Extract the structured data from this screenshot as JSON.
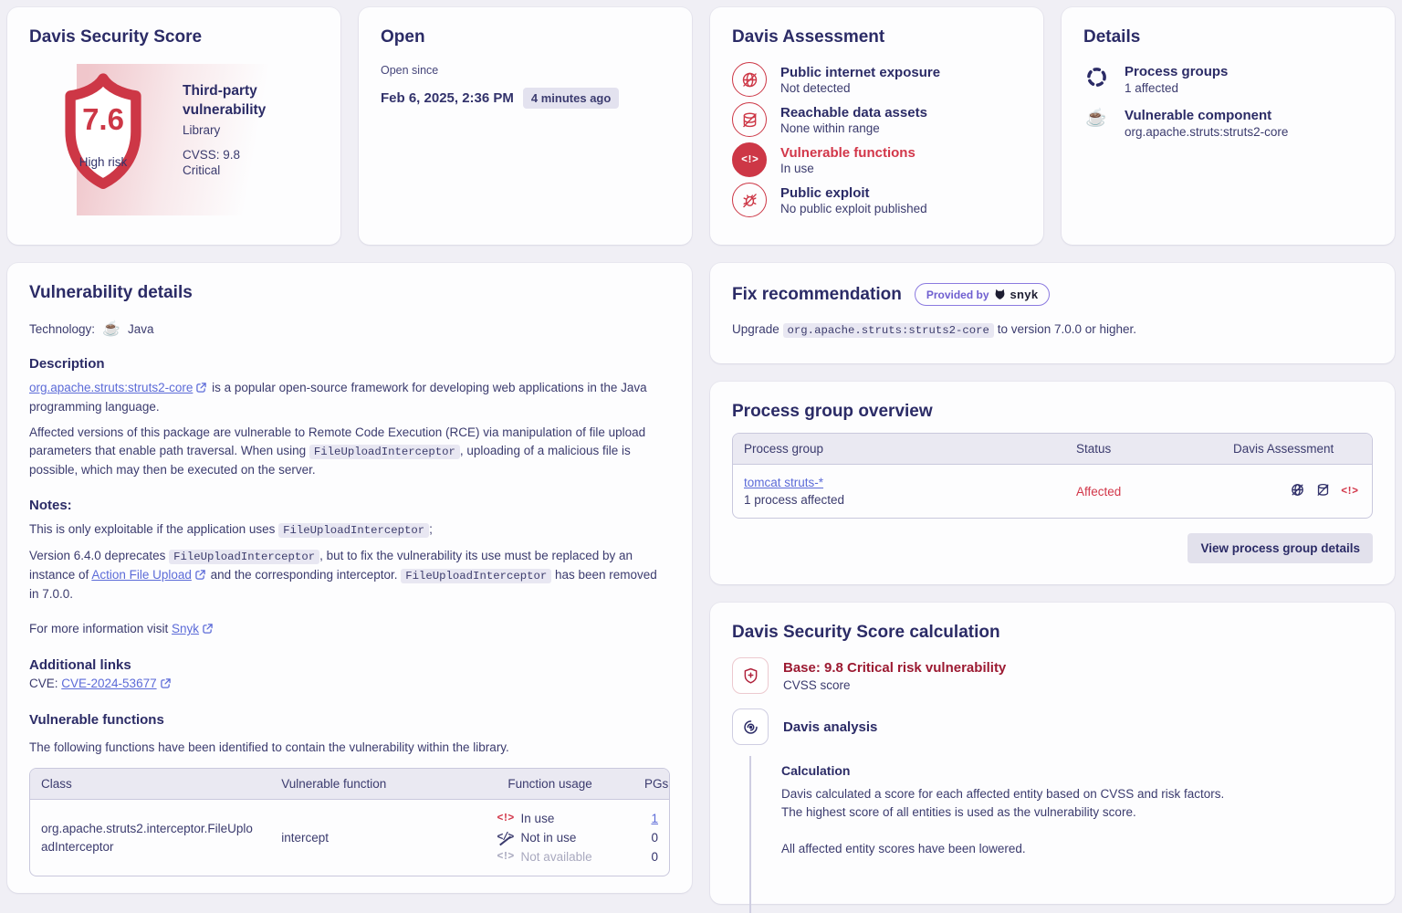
{
  "colors": {
    "accent_red": "#cd3746",
    "bright_red": "#d23649",
    "dark_red": "#9c1a32",
    "navy": "#2b2b66",
    "link": "#5c6bd8",
    "page_bg": "#f0eff5"
  },
  "icons": {
    "code_alert_glyph": "<!>",
    "code_slash_glyph": "</>",
    "java_glyph": "☕"
  },
  "score_card": {
    "title": "Davis Security Score",
    "score": "7.6",
    "risk_label": "High risk",
    "type": "Third-party vulnerability",
    "category": "Library",
    "cvss": "CVSS: 9.8",
    "severity": "Critical"
  },
  "status_card": {
    "title": "Open",
    "since_label": "Open since",
    "timestamp": "Feb 6, 2025, 2:36 PM",
    "ago_badge": "4 minutes ago"
  },
  "assessment_card": {
    "title": "Davis Assessment",
    "items": [
      {
        "label": "Public internet exposure",
        "value": "Not detected",
        "icon": "globe-slash-icon"
      },
      {
        "label": "Reachable data assets",
        "value": "None within range",
        "icon": "database-slash-icon"
      },
      {
        "label": "Vulnerable functions",
        "value": "In use",
        "icon": "code-alert-icon"
      },
      {
        "label": "Public exploit",
        "value": "No public exploit published",
        "icon": "bug-slash-icon"
      }
    ]
  },
  "details_card": {
    "title": "Details",
    "items": [
      {
        "label": "Process groups",
        "value": "1 affected",
        "icon": "process-groups-icon"
      },
      {
        "label": "Vulnerable component",
        "value": "org.apache.struts:struts2-core",
        "icon": "java-icon"
      }
    ]
  },
  "vuln_details": {
    "title": "Vulnerability details",
    "technology_label": "Technology:",
    "technology_value": "Java",
    "description_heading": "Description",
    "p1": [
      {
        "t": "extlink",
        "v": "org.apache.struts:struts2-core"
      },
      {
        "t": "text",
        "v": " is a popular open-source framework for developing web applications in the Java programming language."
      }
    ],
    "p2": [
      {
        "t": "text",
        "v": "Affected versions of this package are vulnerable to Remote Code Execution (RCE) via manipulation of file upload parameters that enable path traversal. When using "
      },
      {
        "t": "code",
        "v": "FileUploadInterceptor"
      },
      {
        "t": "text",
        "v": ", uploading of a malicious file is possible, which may then be executed on the server."
      }
    ],
    "notes_heading": "Notes:",
    "n1": [
      {
        "t": "text",
        "v": "This is only exploitable if the application uses "
      },
      {
        "t": "code",
        "v": "FileUploadInterceptor"
      },
      {
        "t": "text",
        "v": ";"
      }
    ],
    "n2": [
      {
        "t": "text",
        "v": "Version 6.4.0 deprecates "
      },
      {
        "t": "code",
        "v": "FileUploadInterceptor"
      },
      {
        "t": "text",
        "v": ", but to fix the vulnerability its use must be replaced by an instance of "
      },
      {
        "t": "extlink",
        "v": "Action File Upload"
      },
      {
        "t": "text",
        "v": " and the corresponding interceptor. "
      },
      {
        "t": "code",
        "v": "FileUploadInterceptor"
      },
      {
        "t": "text",
        "v": " has been removed in 7.0.0."
      }
    ],
    "more_info": [
      {
        "t": "text",
        "v": "For more information visit "
      },
      {
        "t": "extlink",
        "v": "Snyk"
      }
    ],
    "additional_links_heading": "Additional links",
    "cve_line": [
      {
        "t": "text",
        "v": "CVE:  "
      },
      {
        "t": "extlink",
        "v": "CVE-2024-53677"
      }
    ],
    "vulnerable_functions_heading": "Vulnerable functions",
    "vulnerable_functions_desc": "The following functions have been identified to contain the vulnerability within the library.",
    "table": {
      "headers": [
        "Class",
        "Vulnerable function",
        "Function usage",
        "PGs"
      ],
      "row": {
        "class": "org.apache.struts2.interceptor.FileUploadInterceptor",
        "function": "intercept",
        "usage": [
          {
            "label": "In use",
            "count": "1",
            "state": "in-use"
          },
          {
            "label": "Not in use",
            "count": "0",
            "state": "not-in-use"
          },
          {
            "label": "Not available",
            "count": "0",
            "state": "not-available"
          }
        ]
      }
    }
  },
  "fix_card": {
    "title": "Fix recommendation",
    "badge_label": "Provided by",
    "badge_brand": "snyk",
    "body": [
      {
        "t": "text",
        "v": "Upgrade "
      },
      {
        "t": "code",
        "v": "org.apache.struts:struts2-core"
      },
      {
        "t": "text",
        "v": " to version 7.0.0 or higher."
      }
    ]
  },
  "pgo_card": {
    "title": "Process group overview",
    "headers": [
      "Process group",
      "Status",
      "Davis Assessment"
    ],
    "row": {
      "name": "tomcat struts-*",
      "sub": "1 process affected",
      "status": "Affected"
    },
    "button": "View process group details"
  },
  "calc_card": {
    "title": "Davis Security Score calculation",
    "base_title": "Base: 9.8 Critical risk vulnerability",
    "base_sub": "CVSS score",
    "davis_title": "Davis analysis",
    "calc_heading": "Calculation",
    "calc_p1": "Davis calculated a score for each affected entity based on CVSS and risk factors.",
    "calc_p2": "The highest score of all entities is used as the vulnerability score.",
    "calc_p3": "All affected entity scores have been lowered."
  }
}
